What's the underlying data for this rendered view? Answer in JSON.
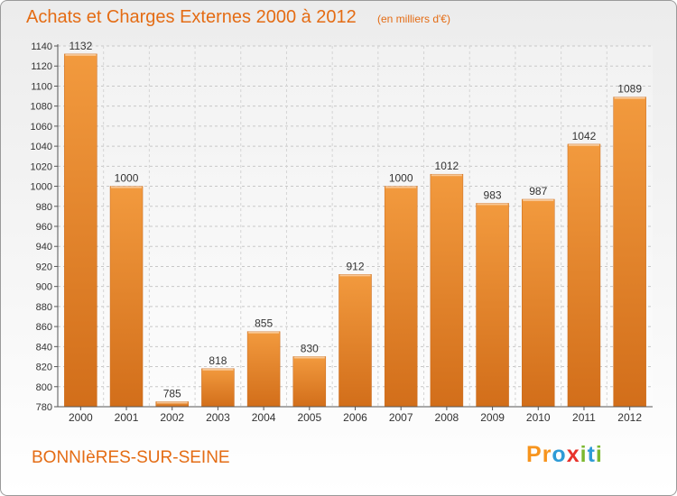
{
  "header": {
    "title": "Achats et Charges Externes 2000 à 2012",
    "subtitle": "(en milliers d'€)"
  },
  "footer": {
    "commune": "BONNIèRES-SUR-SEINE",
    "logo_letters": [
      "P",
      "r",
      "o",
      "x",
      "i",
      "t",
      "i"
    ],
    "logo_colors": [
      "#f7941d",
      "#f7941d",
      "#2e9bd6",
      "#e8322b",
      "#7cb82f",
      "#2e9bd6",
      "#7cb82f"
    ]
  },
  "chart_data": {
    "type": "bar",
    "title": "Achats et Charges Externes 2000 à 2012",
    "subtitle": "(en milliers d'€)",
    "categories": [
      "2000",
      "2001",
      "2002",
      "2003",
      "2004",
      "2005",
      "2006",
      "2007",
      "2008",
      "2009",
      "2010",
      "2011",
      "2012"
    ],
    "values": [
      1132,
      1000,
      785,
      818,
      855,
      830,
      912,
      1000,
      1012,
      983,
      987,
      1042,
      1089
    ],
    "ylim": [
      780,
      1140
    ],
    "ytick_step": 20,
    "grid": true,
    "bar_color": "#f29a3e",
    "bar_color_dark": "#d26e1a"
  }
}
